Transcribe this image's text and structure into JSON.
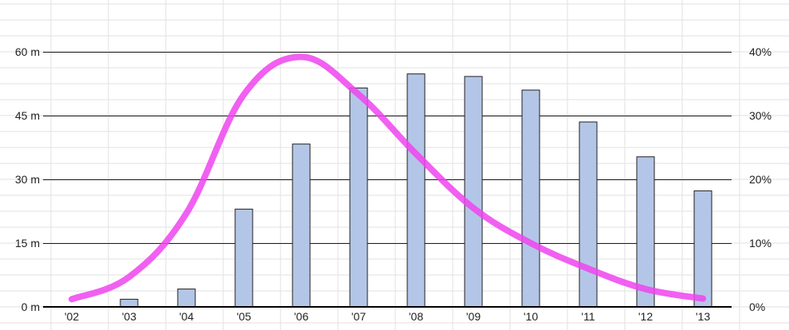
{
  "chart_data": {
    "type": "bar",
    "title": "",
    "xlabel": "",
    "ylabel": "",
    "y2label": "",
    "categories": [
      "'02",
      "'03",
      "'04",
      "'05",
      "'06",
      "'07",
      "'08",
      "'09",
      "'10",
      "'11",
      "'12",
      "'13"
    ],
    "ylim": [
      0,
      60
    ],
    "y_ticks": [
      "0 m",
      "15 m",
      "30 m",
      "45 m",
      "60 m"
    ],
    "y_tick_values": [
      0,
      15,
      30,
      45,
      60
    ],
    "y2lim": [
      0,
      40
    ],
    "y2_ticks": [
      "0%",
      "10%",
      "20%",
      "30%",
      "40%"
    ],
    "y2_tick_values": [
      0,
      10,
      20,
      30,
      40
    ],
    "grid": true,
    "legend": "none",
    "series": [
      {
        "type": "bar",
        "axis": "left",
        "color": "#b4c6e7",
        "values": [
          0,
          1.8,
          4.2,
          23,
          38.3,
          51.5,
          54.8,
          54.2,
          51,
          43.5,
          35.3,
          27.3
        ]
      },
      {
        "type": "line",
        "axis": "right",
        "color": "#ee44ee",
        "values": [
          1.2,
          4.7,
          14.7,
          33.3,
          39.2,
          33.3,
          24,
          15.5,
          10,
          6,
          2.8,
          1.3
        ]
      }
    ]
  }
}
